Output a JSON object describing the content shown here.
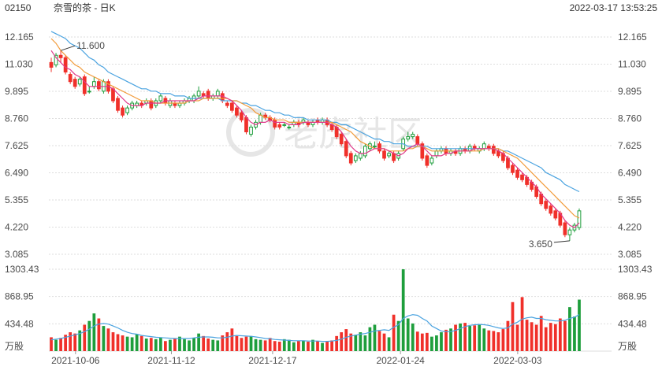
{
  "header": {
    "code": "02150",
    "title": "奈雪的茶 - 日K",
    "datetime": "2022-03-17 13:53:25"
  },
  "watermark": "老虎社区",
  "colors": {
    "up": "#f0302a",
    "down": "#1e9e3c",
    "ma_short": "#e0398a",
    "ma_mid": "#f29b3a",
    "ma_long": "#4aa3e0",
    "grid": "#dedede",
    "text": "#4a4a4a"
  },
  "chart_data": [
    {
      "type": "candlestick",
      "title": "奈雪的茶 - 日K",
      "ylim": [
        3.085,
        12.165
      ],
      "y_ticks": [
        "12.165",
        "11.030",
        "9.895",
        "8.760",
        "7.625",
        "6.490",
        "5.355",
        "4.220",
        "3.085"
      ],
      "x_ticks": [
        "2021-10-06",
        "2021-11-12",
        "2021-12-17",
        "2022-01-24",
        "2022-03-03"
      ],
      "annotations": [
        {
          "label": "11.600",
          "value": 11.6,
          "kind": "max"
        },
        {
          "label": "3.650",
          "value": 3.65,
          "kind": "min"
        }
      ],
      "open": [
        11.1,
        11.0,
        11.4,
        11.3,
        10.6,
        10.4,
        10.2,
        10.5,
        9.9,
        10.1,
        10.3,
        9.9,
        10.3,
        10.0,
        9.6,
        9.2,
        9.0,
        9.2,
        9.3,
        9.4,
        9.4,
        9.5,
        9.3,
        9.5,
        9.6,
        9.3,
        9.4,
        9.3,
        9.4,
        9.5,
        9.5,
        9.7,
        9.8,
        9.9,
        9.6,
        9.7,
        9.8,
        9.4,
        9.4,
        9.2,
        9.0,
        8.8,
        8.1,
        8.4,
        8.6,
        8.9,
        8.8,
        8.7,
        8.5,
        8.5,
        8.4,
        8.5,
        8.6,
        8.6,
        8.6,
        8.5,
        8.7,
        8.6,
        8.7,
        8.5,
        8.4,
        8.1,
        7.8,
        7.3,
        7.0,
        7.1,
        7.2,
        7.5,
        7.6,
        7.7,
        7.4,
        7.2,
        7.3,
        7.1,
        7.5,
        7.9,
        8.0,
        8.0,
        7.7,
        7.2,
        6.9,
        7.2,
        7.4,
        7.5,
        7.3,
        7.4,
        7.3,
        7.5,
        7.4,
        7.6,
        7.4,
        7.5,
        7.6,
        7.6,
        7.4,
        7.3,
        7.1,
        6.8,
        6.6,
        6.4,
        6.3,
        6.1,
        5.9,
        5.6,
        5.3,
        5.1,
        4.9,
        4.8,
        4.4,
        3.9,
        4.1,
        4.2
      ],
      "close": [
        10.9,
        11.4,
        11.3,
        10.7,
        10.3,
        10.1,
        10.4,
        9.8,
        9.9,
        10.3,
        10.0,
        10.3,
        9.9,
        9.5,
        9.1,
        8.9,
        9.2,
        9.4,
        9.4,
        9.3,
        9.5,
        9.2,
        9.5,
        9.7,
        9.4,
        9.5,
        9.3,
        9.4,
        9.5,
        9.6,
        9.7,
        9.9,
        9.7,
        9.6,
        9.7,
        9.9,
        9.5,
        9.3,
        9.1,
        8.9,
        8.7,
        8.2,
        8.4,
        8.6,
        8.9,
        8.8,
        8.7,
        8.4,
        8.4,
        8.5,
        8.4,
        8.6,
        8.5,
        8.7,
        8.5,
        8.6,
        8.6,
        8.7,
        8.5,
        8.3,
        8.0,
        7.7,
        7.2,
        6.9,
        7.2,
        7.3,
        7.6,
        7.7,
        7.6,
        7.4,
        7.1,
        7.3,
        7.0,
        7.3,
        7.9,
        8.0,
        8.1,
        7.7,
        7.1,
        6.8,
        7.1,
        7.4,
        7.5,
        7.3,
        7.4,
        7.3,
        7.5,
        7.4,
        7.6,
        7.5,
        7.5,
        7.7,
        7.5,
        7.3,
        7.2,
        7.0,
        6.7,
        6.5,
        6.3,
        6.2,
        6.0,
        5.8,
        5.5,
        5.2,
        5.0,
        4.8,
        4.6,
        4.3,
        3.9,
        4.1,
        4.3,
        4.9
      ],
      "high": [
        11.3,
        11.5,
        11.6,
        11.4,
        10.7,
        10.5,
        10.5,
        10.6,
        10.1,
        10.5,
        10.4,
        10.4,
        10.4,
        10.1,
        9.7,
        9.3,
        9.3,
        9.5,
        9.5,
        9.5,
        9.6,
        9.6,
        9.6,
        9.8,
        9.7,
        9.6,
        9.5,
        9.5,
        9.6,
        9.7,
        9.8,
        10.1,
        9.9,
        10.0,
        9.8,
        10.0,
        9.9,
        9.5,
        9.5,
        9.3,
        9.1,
        8.9,
        8.5,
        8.7,
        9.0,
        9.0,
        8.9,
        8.8,
        8.6,
        8.6,
        8.5,
        8.7,
        8.7,
        8.8,
        8.7,
        8.7,
        8.8,
        8.8,
        8.8,
        8.6,
        8.5,
        8.2,
        7.9,
        7.4,
        7.3,
        7.4,
        7.7,
        7.8,
        7.8,
        7.8,
        7.5,
        7.4,
        7.4,
        7.4,
        8.0,
        8.2,
        8.2,
        8.1,
        7.8,
        7.3,
        7.2,
        7.5,
        7.6,
        7.6,
        7.5,
        7.5,
        7.6,
        7.6,
        7.7,
        7.7,
        7.6,
        7.8,
        7.7,
        7.7,
        7.5,
        7.4,
        7.2,
        6.9,
        6.7,
        6.5,
        6.4,
        6.2,
        6.0,
        5.7,
        5.4,
        5.2,
        5.0,
        4.9,
        4.5,
        4.2,
        4.4,
        5.0
      ],
      "low": [
        10.7,
        10.9,
        11.1,
        10.6,
        10.2,
        10.0,
        10.1,
        9.7,
        9.8,
        10.0,
        9.9,
        9.8,
        9.8,
        9.4,
        9.0,
        8.8,
        8.9,
        9.1,
        9.2,
        9.2,
        9.3,
        9.1,
        9.2,
        9.4,
        9.3,
        9.2,
        9.2,
        9.2,
        9.3,
        9.4,
        9.4,
        9.6,
        9.6,
        9.5,
        9.5,
        9.6,
        9.4,
        9.2,
        9.0,
        8.8,
        8.6,
        8.1,
        8.0,
        8.3,
        8.5,
        8.7,
        8.6,
        8.3,
        8.3,
        8.4,
        8.3,
        8.4,
        8.4,
        8.5,
        8.4,
        8.4,
        8.5,
        8.5,
        8.4,
        8.2,
        7.9,
        7.6,
        7.1,
        6.8,
        6.9,
        7.0,
        7.1,
        7.4,
        7.5,
        7.3,
        7.0,
        7.1,
        6.9,
        7.0,
        7.4,
        7.8,
        7.9,
        7.6,
        7.0,
        6.7,
        6.8,
        7.1,
        7.3,
        7.2,
        7.2,
        7.2,
        7.2,
        7.3,
        7.3,
        7.4,
        7.3,
        7.4,
        7.4,
        7.2,
        7.1,
        6.9,
        6.6,
        6.4,
        6.2,
        6.1,
        5.9,
        5.7,
        5.4,
        5.1,
        4.9,
        4.7,
        4.5,
        4.2,
        3.8,
        3.65,
        4.0,
        4.1
      ],
      "ma_short": [
        11.6,
        11.3,
        11.1,
        10.9,
        10.8,
        10.6,
        10.5,
        10.3,
        10.1,
        10.1,
        10.1,
        10.1,
        10.1,
        10.0,
        9.8,
        9.6,
        9.4,
        9.3,
        9.3,
        9.3,
        9.4,
        9.4,
        9.4,
        9.4,
        9.5,
        9.5,
        9.5,
        9.5,
        9.5,
        9.5,
        9.5,
        9.6,
        9.7,
        9.7,
        9.7,
        9.7,
        9.7,
        9.6,
        9.5,
        9.3,
        9.1,
        8.8,
        8.6,
        8.5,
        8.6,
        8.6,
        8.7,
        8.6,
        8.6,
        8.6,
        8.5,
        8.5,
        8.5,
        8.6,
        8.6,
        8.6,
        8.6,
        8.6,
        8.6,
        8.5,
        8.4,
        8.2,
        7.9,
        7.6,
        7.4,
        7.3,
        7.3,
        7.4,
        7.5,
        7.5,
        7.5,
        7.4,
        7.3,
        7.2,
        7.3,
        7.5,
        7.6,
        7.7,
        7.6,
        7.4,
        7.2,
        7.2,
        7.2,
        7.3,
        7.3,
        7.4,
        7.4,
        7.4,
        7.4,
        7.5,
        7.5,
        7.5,
        7.5,
        7.5,
        7.4,
        7.3,
        7.1,
        6.9,
        6.7,
        6.5,
        6.3,
        6.1,
        5.9,
        5.6,
        5.4,
        5.2,
        5.0,
        4.8,
        4.5,
        4.3,
        4.2,
        4.4
      ],
      "ma_mid": [
        12.1,
        11.9,
        11.6,
        11.4,
        11.2,
        11.0,
        10.9,
        10.7,
        10.6,
        10.5,
        10.4,
        10.3,
        10.2,
        10.1,
        10.0,
        9.9,
        9.8,
        9.7,
        9.6,
        9.5,
        9.5,
        9.5,
        9.4,
        9.4,
        9.4,
        9.4,
        9.4,
        9.4,
        9.4,
        9.5,
        9.5,
        9.5,
        9.6,
        9.6,
        9.6,
        9.6,
        9.6,
        9.6,
        9.5,
        9.5,
        9.4,
        9.3,
        9.2,
        9.0,
        8.9,
        8.8,
        8.8,
        8.7,
        8.7,
        8.7,
        8.6,
        8.6,
        8.6,
        8.6,
        8.6,
        8.6,
        8.6,
        8.6,
        8.6,
        8.6,
        8.5,
        8.4,
        8.3,
        8.2,
        8.0,
        7.8,
        7.7,
        7.6,
        7.5,
        7.5,
        7.5,
        7.4,
        7.4,
        7.4,
        7.4,
        7.5,
        7.5,
        7.6,
        7.6,
        7.5,
        7.4,
        7.4,
        7.4,
        7.4,
        7.4,
        7.4,
        7.4,
        7.4,
        7.4,
        7.4,
        7.4,
        7.5,
        7.5,
        7.5,
        7.5,
        7.4,
        7.3,
        7.2,
        7.1,
        6.9,
        6.7,
        6.5,
        6.3,
        6.1,
        5.9,
        5.7,
        5.5,
        5.3,
        5.1,
        4.9,
        4.7,
        4.6
      ],
      "ma_long": [
        12.4,
        12.3,
        12.2,
        12.1,
        11.9,
        11.8,
        11.7,
        11.5,
        11.3,
        11.2,
        11.0,
        10.9,
        10.7,
        10.6,
        10.5,
        10.4,
        10.3,
        10.2,
        10.1,
        10.0,
        10.0,
        9.9,
        9.9,
        9.8,
        9.8,
        9.8,
        9.7,
        9.7,
        9.7,
        9.6,
        9.6,
        9.6,
        9.6,
        9.6,
        9.6,
        9.6,
        9.5,
        9.5,
        9.5,
        9.5,
        9.4,
        9.4,
        9.3,
        9.3,
        9.2,
        9.1,
        9.1,
        9.0,
        9.0,
        8.9,
        8.9,
        8.8,
        8.8,
        8.8,
        8.7,
        8.7,
        8.7,
        8.7,
        8.7,
        8.6,
        8.6,
        8.5,
        8.5,
        8.4,
        8.3,
        8.2,
        8.1,
        8.0,
        7.9,
        7.9,
        7.8,
        7.8,
        7.7,
        7.7,
        7.7,
        7.6,
        7.6,
        7.6,
        7.6,
        7.6,
        7.5,
        7.5,
        7.5,
        7.5,
        7.5,
        7.5,
        7.5,
        7.5,
        7.5,
        7.5,
        7.5,
        7.5,
        7.5,
        7.5,
        7.5,
        7.4,
        7.4,
        7.3,
        7.2,
        7.1,
        7.0,
        6.9,
        6.8,
        6.7,
        6.5,
        6.4,
        6.3,
        6.2,
        6.0,
        5.9,
        5.8,
        5.7
      ]
    },
    {
      "type": "bar",
      "title": "",
      "unit": "万股",
      "ylim": [
        0,
        1303.43
      ],
      "y_ticks": [
        "1303.43",
        "868.95",
        "434.48"
      ],
      "volume": [
        220,
        180,
        210,
        260,
        300,
        280,
        330,
        420,
        480,
        600,
        520,
        400,
        360,
        300,
        270,
        250,
        230,
        220,
        270,
        240,
        200,
        210,
        190,
        220,
        160,
        180,
        200,
        230,
        190,
        170,
        210,
        280,
        240,
        200,
        180,
        170,
        250,
        300,
        360,
        240,
        210,
        230,
        240,
        190,
        180,
        170,
        210,
        160,
        150,
        190,
        180,
        140,
        160,
        170,
        150,
        180,
        160,
        130,
        150,
        170,
        240,
        300,
        350,
        280,
        260,
        300,
        250,
        380,
        420,
        320,
        280,
        220,
        580,
        480,
        1303,
        520,
        440,
        310,
        280,
        290,
        230,
        250,
        300,
        340,
        360,
        420,
        440,
        450,
        400,
        410,
        420,
        360,
        330,
        320,
        300,
        350,
        480,
        780,
        420,
        860,
        500,
        460,
        420,
        560,
        380,
        450,
        430,
        520,
        480,
        700,
        550,
        820
      ],
      "ma_volume": [
        180,
        190,
        200,
        220,
        240,
        260,
        280,
        310,
        350,
        400,
        430,
        440,
        430,
        400,
        370,
        330,
        300,
        280,
        270,
        250,
        240,
        230,
        220,
        215,
        210,
        205,
        200,
        200,
        200,
        200,
        210,
        220,
        225,
        225,
        220,
        210,
        210,
        220,
        240,
        250,
        245,
        240,
        235,
        225,
        215,
        200,
        195,
        185,
        180,
        175,
        170,
        165,
        165,
        165,
        160,
        160,
        160,
        155,
        155,
        160,
        170,
        190,
        220,
        240,
        255,
        270,
        280,
        300,
        320,
        330,
        340,
        330,
        380,
        420,
        520,
        560,
        580,
        570,
        520,
        480,
        400,
        360,
        320,
        310,
        310,
        330,
        360,
        390,
        410,
        420,
        425,
        420,
        410,
        390,
        370,
        360,
        370,
        430,
        460,
        510,
        530,
        540,
        520,
        520,
        500,
        490,
        480,
        480,
        490,
        520,
        540,
        580
      ]
    }
  ]
}
